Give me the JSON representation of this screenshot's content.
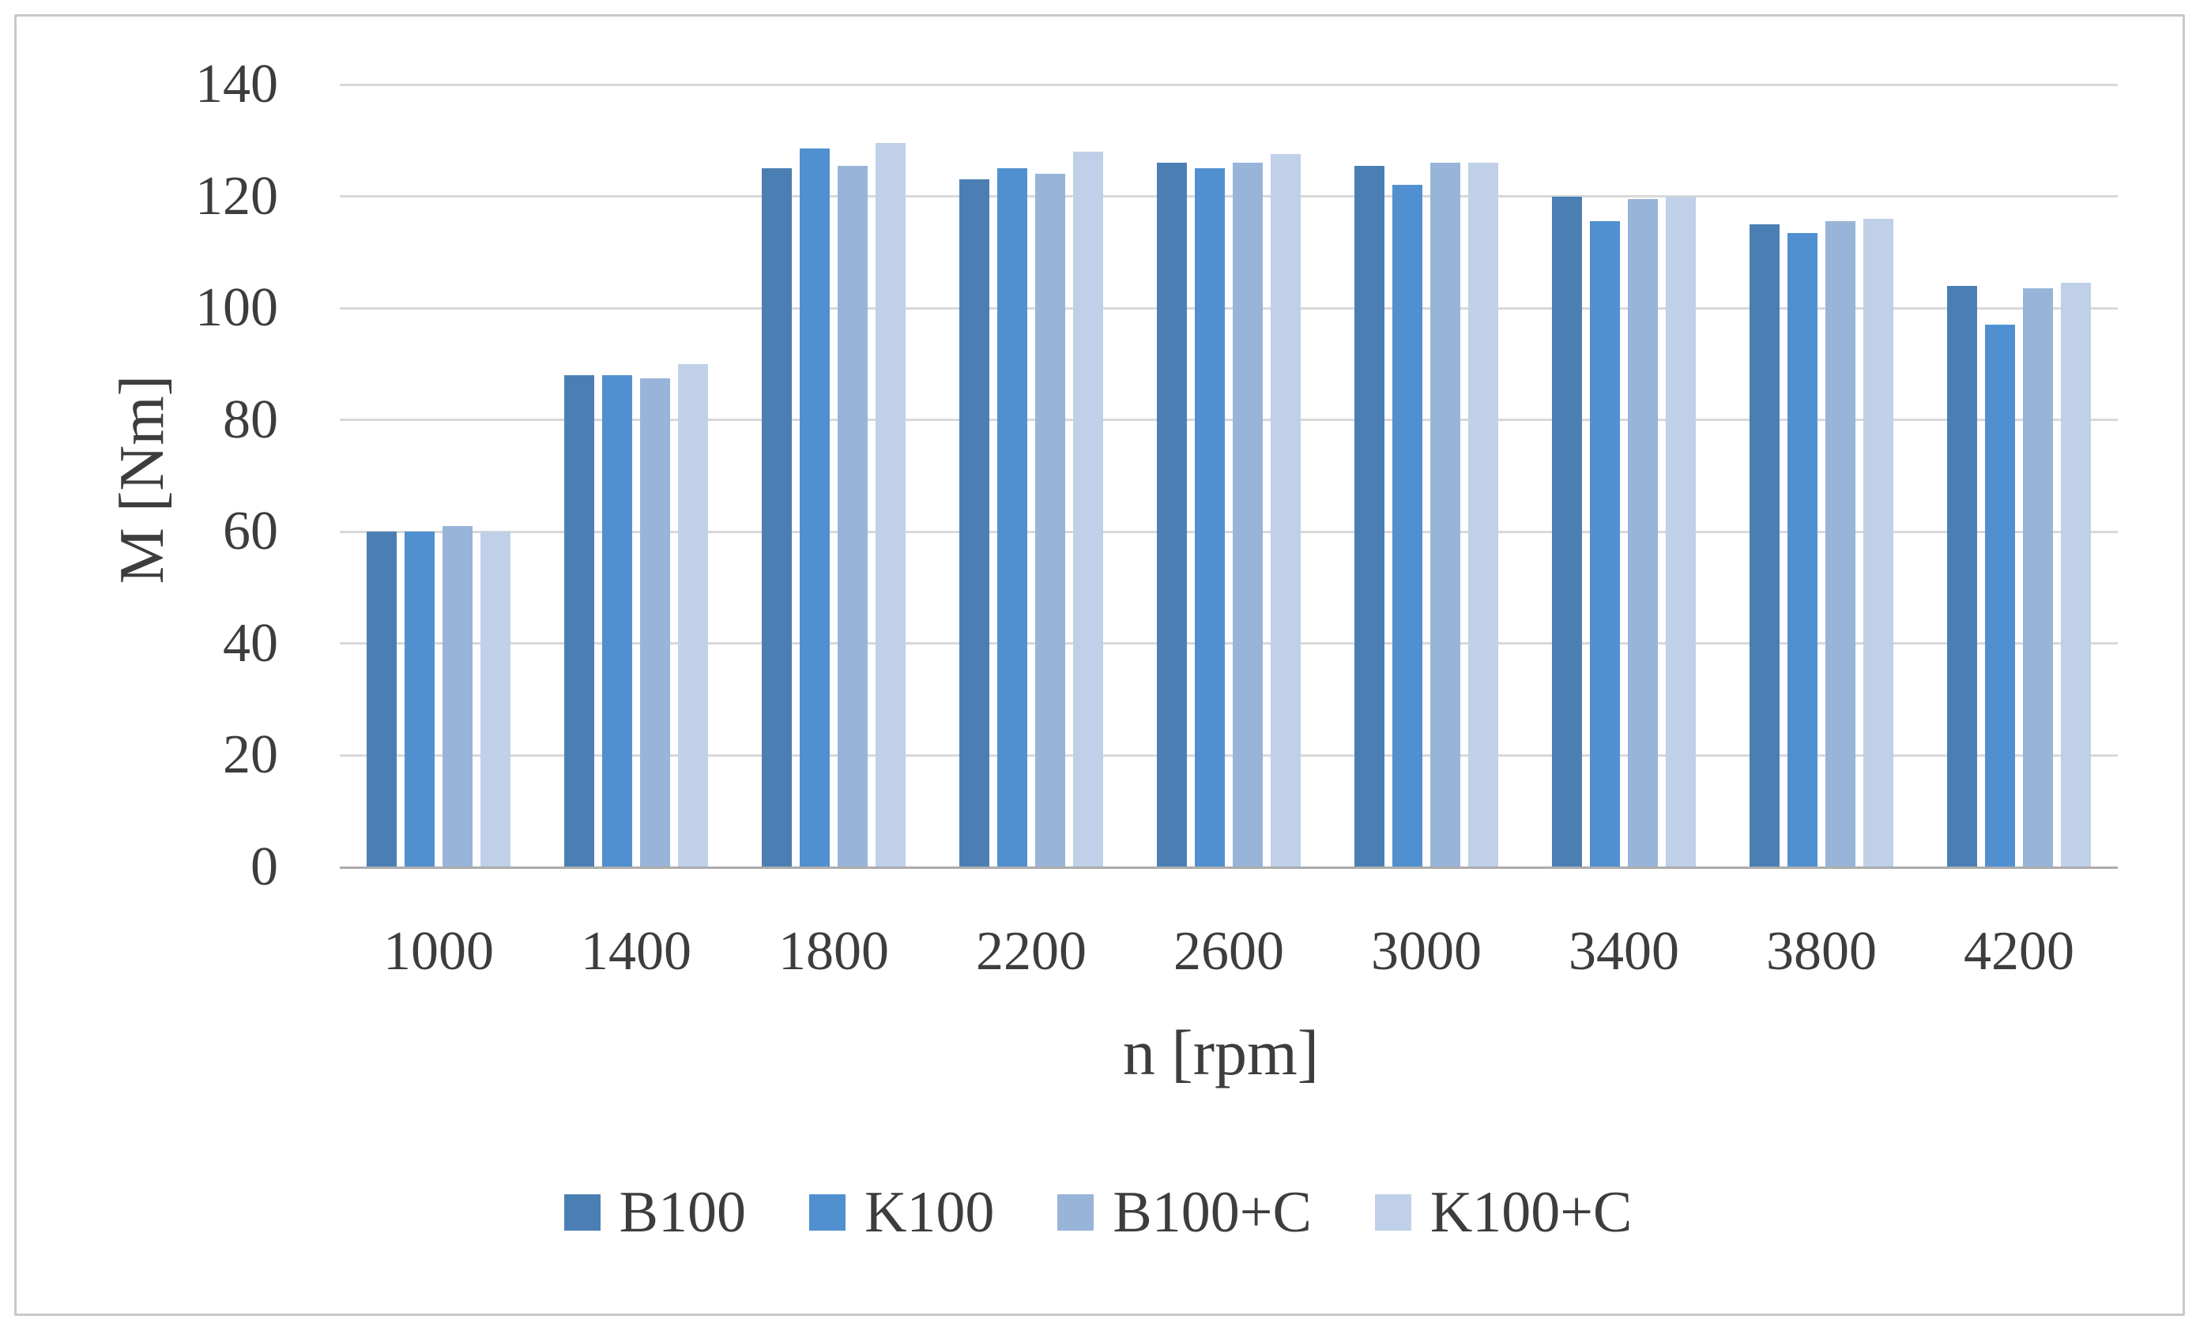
{
  "figure": {
    "background": "#ffffff",
    "frame_border_color": "#c9c9c9"
  },
  "chart_data": {
    "type": "bar",
    "title": "",
    "xlabel": "n [rpm]",
    "ylabel": "M [Nm]",
    "ylim": [
      0,
      140
    ],
    "yticks": [
      0,
      20,
      40,
      60,
      80,
      100,
      120,
      140
    ],
    "grid": "horizontal",
    "gridline_color": "#d8d8d8",
    "axis_line_color": "#acacac",
    "text_color": "#3d3d3d",
    "legend_position": "bottom-center",
    "categories": [
      "1000",
      "1400",
      "1800",
      "2200",
      "2600",
      "3000",
      "3400",
      "3800",
      "4200"
    ],
    "series": [
      {
        "name": "B100",
        "color": "#4b7fb4",
        "values": [
          60,
          88,
          125,
          123,
          126,
          125.5,
          120,
          115,
          104
        ]
      },
      {
        "name": "K100",
        "color": "#5190d0",
        "values": [
          60,
          88,
          128.5,
          125,
          125,
          122,
          115.5,
          113.5,
          97
        ]
      },
      {
        "name": "B100+C",
        "color": "#98b4d8",
        "values": [
          61,
          87.5,
          125.5,
          124,
          126,
          126,
          119.5,
          115.5,
          103.5
        ]
      },
      {
        "name": "K100+C",
        "color": "#bfd0e8",
        "values": [
          60,
          90,
          129.5,
          128,
          127.5,
          126,
          120,
          116,
          104.5
        ]
      }
    ]
  }
}
